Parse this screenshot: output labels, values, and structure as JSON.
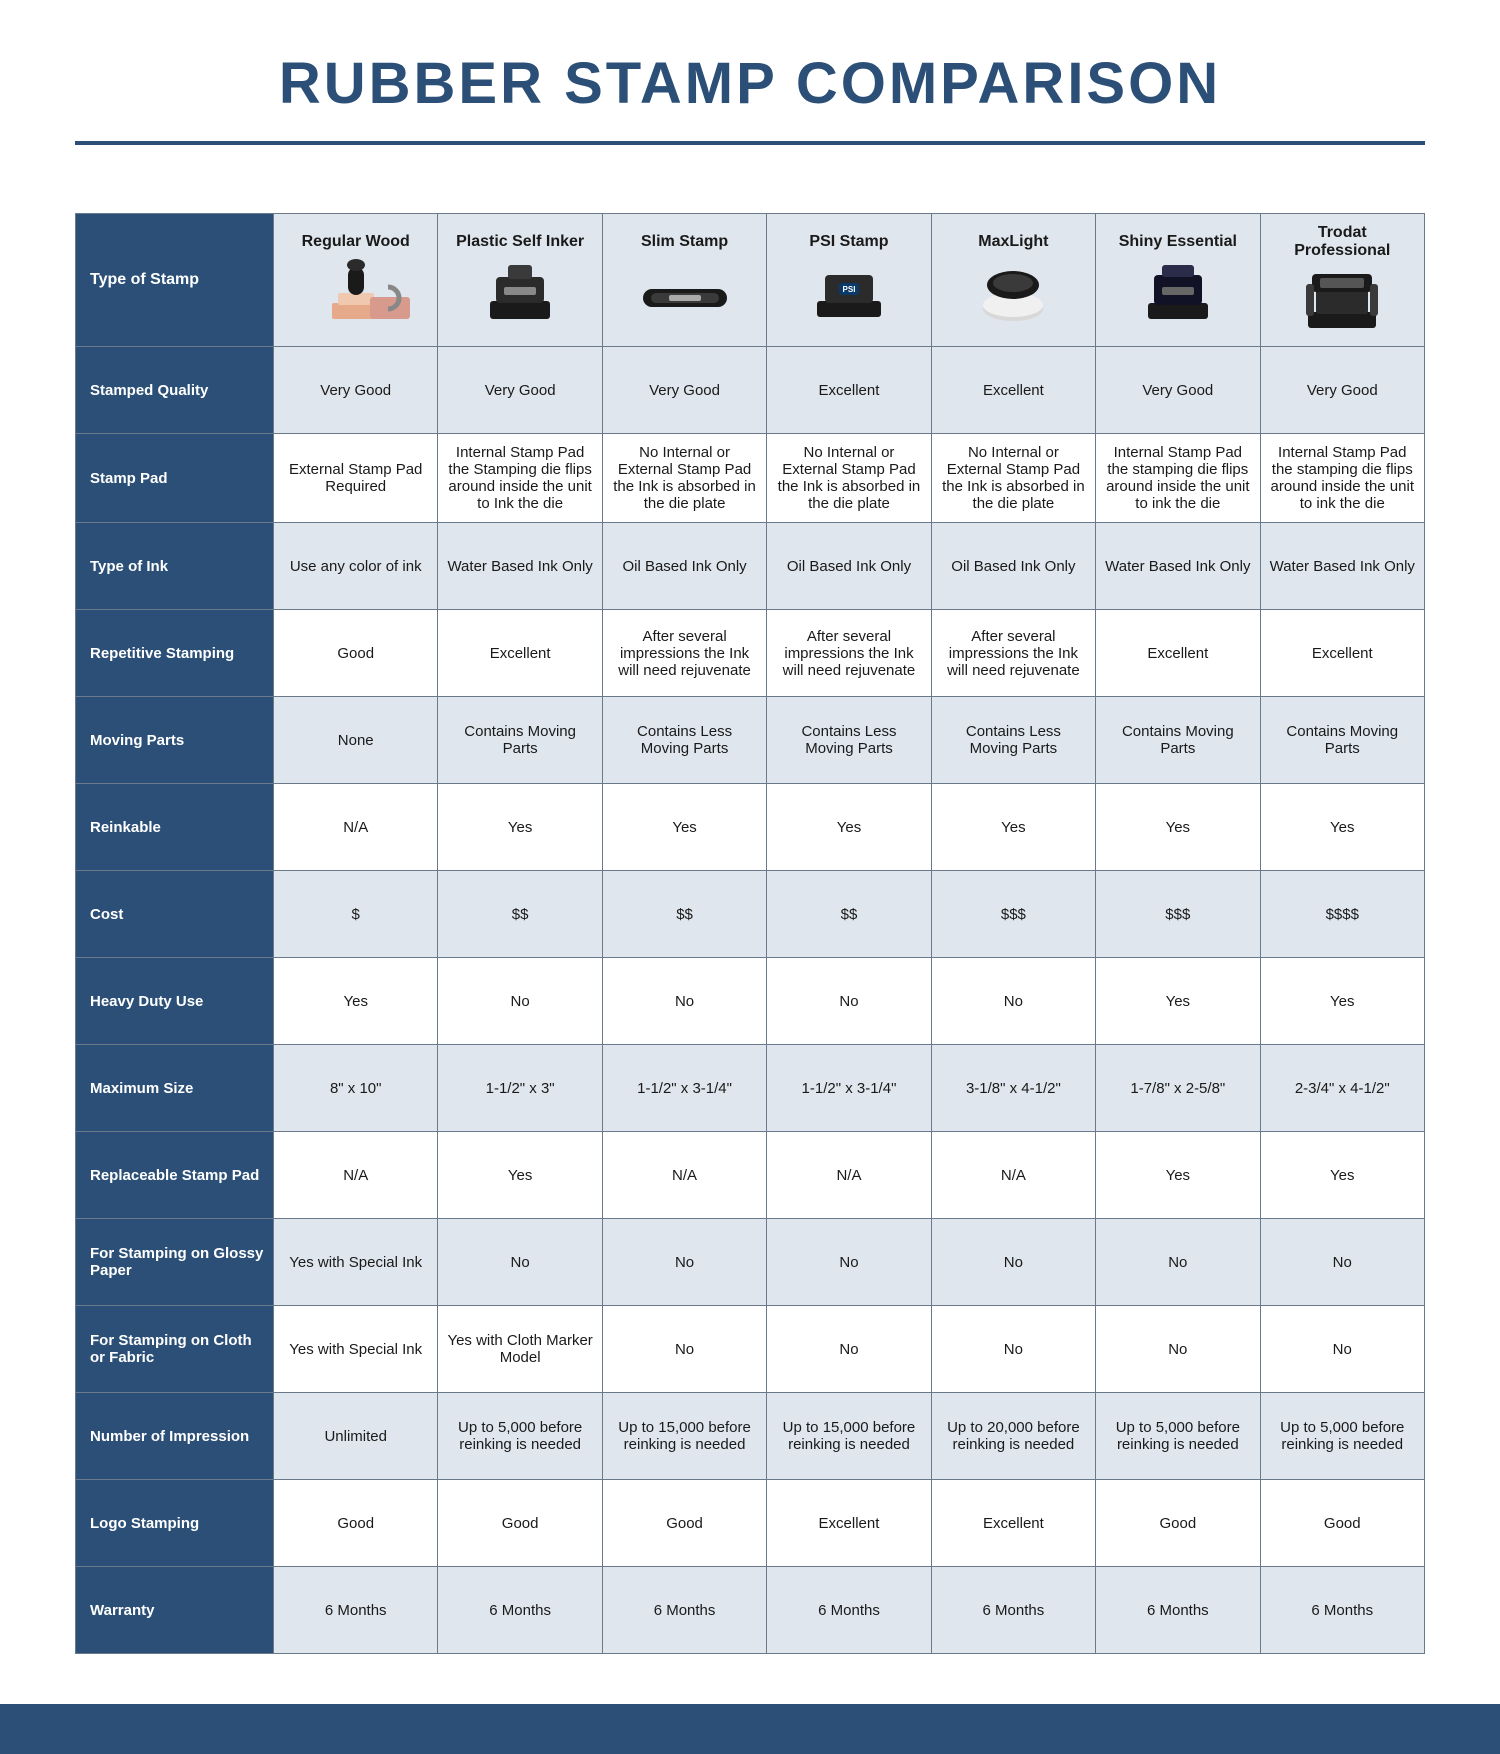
{
  "title": "RUBBER STAMP COMPARISON",
  "colors": {
    "brand": "#2b4f76",
    "band_light": "#dfe6ed",
    "border": "#6a7a8a",
    "white": "#ffffff",
    "text": "#1a1a1a"
  },
  "typography": {
    "title_fontsize": 58,
    "title_weight": 700,
    "header_fontsize": 16,
    "cell_fontsize": 15
  },
  "table": {
    "corner_label": "Type of Stamp",
    "columns": [
      {
        "label": "Regular Wood",
        "icon": "wood"
      },
      {
        "label": "Plastic Self Inker",
        "icon": "selfinker"
      },
      {
        "label": "Slim Stamp",
        "icon": "slim"
      },
      {
        "label": "PSI Stamp",
        "icon": "psi"
      },
      {
        "label": "MaxLight",
        "icon": "maxlight"
      },
      {
        "label": "Shiny Essential",
        "icon": "shiny"
      },
      {
        "label": "Trodat Professional",
        "icon": "trodat"
      }
    ],
    "rows": [
      {
        "label": "Stamped Quality",
        "band": "light",
        "cells": [
          "Very Good",
          "Very Good",
          "Very Good",
          "Excellent",
          "Excellent",
          "Very Good",
          "Very Good"
        ]
      },
      {
        "label": "Stamp Pad",
        "band": "white",
        "cells": [
          "External Stamp Pad Required",
          "Internal Stamp Pad the Stamping die flips around inside the unit to Ink the die",
          "No Internal or External Stamp Pad the Ink is absorbed in the die plate",
          "No Internal or External Stamp Pad the Ink is absorbed in the die plate",
          "No Internal or External Stamp Pad the Ink is absorbed in the die plate",
          "Internal Stamp Pad the stamping die flips around inside the unit to ink the die",
          "Internal Stamp Pad the stamping die flips around inside the unit to ink the die"
        ]
      },
      {
        "label": "Type of Ink",
        "band": "light",
        "cells": [
          "Use any color of ink",
          "Water Based Ink Only",
          "Oil Based Ink Only",
          "Oil Based Ink Only",
          "Oil Based Ink Only",
          "Water Based Ink Only",
          "Water Based Ink Only"
        ]
      },
      {
        "label": "Repetitive Stamping",
        "band": "white",
        "cells": [
          "Good",
          "Excellent",
          "After several impressions the Ink will need rejuvenate",
          "After several impressions the Ink will need rejuvenate",
          "After several impressions the Ink will need rejuvenate",
          "Excellent",
          "Excellent"
        ]
      },
      {
        "label": "Moving Parts",
        "band": "light",
        "cells": [
          "None",
          "Contains Moving Parts",
          "Contains Less Moving Parts",
          "Contains Less Moving Parts",
          "Contains Less Moving Parts",
          "Contains Moving Parts",
          "Contains Moving Parts"
        ]
      },
      {
        "label": "Reinkable",
        "band": "white",
        "cells": [
          "N/A",
          "Yes",
          "Yes",
          "Yes",
          "Yes",
          "Yes",
          "Yes"
        ]
      },
      {
        "label": "Cost",
        "band": "light",
        "cells": [
          "$",
          "$$",
          "$$",
          "$$",
          "$$$",
          "$$$",
          "$$$$"
        ]
      },
      {
        "label": "Heavy Duty Use",
        "band": "white",
        "cells": [
          "Yes",
          "No",
          "No",
          "No",
          "No",
          "Yes",
          "Yes"
        ]
      },
      {
        "label": "Maximum Size",
        "band": "light",
        "cells": [
          "8\" x 10\"",
          "1-1/2\" x 3\"",
          "1-1/2\" x 3-1/4\"",
          "1-1/2\" x 3-1/4\"",
          "3-1/8\" x 4-1/2\"",
          "1-7/8\" x 2-5/8\"",
          "2-3/4\" x 4-1/2\""
        ]
      },
      {
        "label": "Replaceable Stamp Pad",
        "band": "white",
        "cells": [
          "N/A",
          "Yes",
          "N/A",
          "N/A",
          "N/A",
          "Yes",
          "Yes"
        ]
      },
      {
        "label": "For Stamping on Glossy Paper",
        "band": "light",
        "cells": [
          "Yes with Special Ink",
          "No",
          "No",
          "No",
          "No",
          "No",
          "No"
        ]
      },
      {
        "label": "For Stamping on Cloth or Fabric",
        "band": "white",
        "cells": [
          "Yes with Special Ink",
          "Yes with Cloth Marker Model",
          "No",
          "No",
          "No",
          "No",
          "No"
        ]
      },
      {
        "label": "Number of Impression",
        "band": "light",
        "cells": [
          "Unlimited",
          "Up to 5,000 before reinking is needed",
          "Up to 15,000 before reinking is needed",
          "Up to 15,000 before reinking is needed",
          "Up to 20,000 before reinking is needed",
          "Up to 5,000 before reinking is needed",
          "Up to 5,000 before reinking is needed"
        ]
      },
      {
        "label": "Logo Stamping",
        "band": "white",
        "cells": [
          "Good",
          "Good",
          "Good",
          "Excellent",
          "Excellent",
          "Good",
          "Good"
        ]
      },
      {
        "label": "Warranty",
        "band": "light",
        "cells": [
          "6 Months",
          "6 Months",
          "6 Months",
          "6 Months",
          "6 Months",
          "6 Months",
          "6 Months"
        ]
      }
    ]
  }
}
